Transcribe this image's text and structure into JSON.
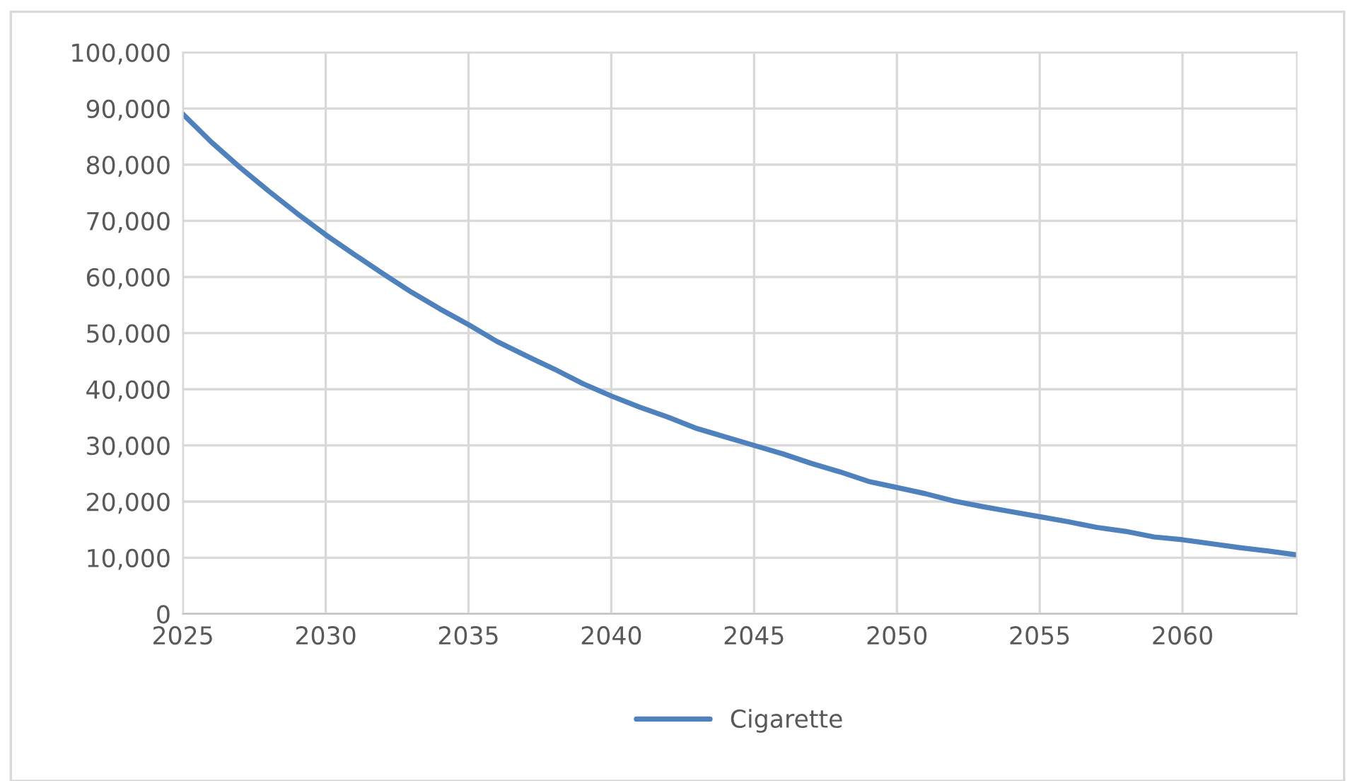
{
  "chart_data": {
    "type": "line",
    "x": [
      2025,
      2026,
      2027,
      2028,
      2029,
      2030,
      2031,
      2032,
      2033,
      2034,
      2035,
      2036,
      2037,
      2038,
      2039,
      2040,
      2041,
      2042,
      2043,
      2044,
      2045,
      2046,
      2047,
      2048,
      2049,
      2050,
      2051,
      2052,
      2053,
      2054,
      2055,
      2056,
      2057,
      2058,
      2059,
      2060,
      2061,
      2062,
      2063,
      2064
    ],
    "series": [
      {
        "name": "Cigarette",
        "color": "#4f81bd",
        "values": [
          89000,
          84000,
          79500,
          75300,
          71300,
          67500,
          64000,
          60600,
          57300,
          54300,
          51500,
          48500,
          46000,
          43600,
          41000,
          38800,
          36800,
          35000,
          33000,
          31500,
          30000,
          28500,
          26800,
          25300,
          23600,
          22500,
          21400,
          20100,
          19100,
          18200,
          17300,
          16400,
          15400,
          14700,
          13700,
          13200,
          12500,
          11800,
          11200,
          10500
        ]
      }
    ],
    "xlim": [
      2025,
      2064
    ],
    "xticks": [
      2025,
      2030,
      2035,
      2040,
      2045,
      2050,
      2055,
      2060
    ],
    "ylim": [
      0,
      100000
    ],
    "yticks": [
      {
        "value": 0,
        "label": "0"
      },
      {
        "value": 10000,
        "label": "10,000"
      },
      {
        "value": 20000,
        "label": "20,000"
      },
      {
        "value": 30000,
        "label": "30,000"
      },
      {
        "value": 40000,
        "label": "40,000"
      },
      {
        "value": 50000,
        "label": "50,000"
      },
      {
        "value": 60000,
        "label": "60,000"
      },
      {
        "value": 70000,
        "label": "70,000"
      },
      {
        "value": 80000,
        "label": "80,000"
      },
      {
        "value": 90000,
        "label": "90,000"
      },
      {
        "value": 100000,
        "label": "100,000"
      }
    ],
    "grid": true,
    "legend": "bottom",
    "marker": "none",
    "line_style": "solid"
  }
}
